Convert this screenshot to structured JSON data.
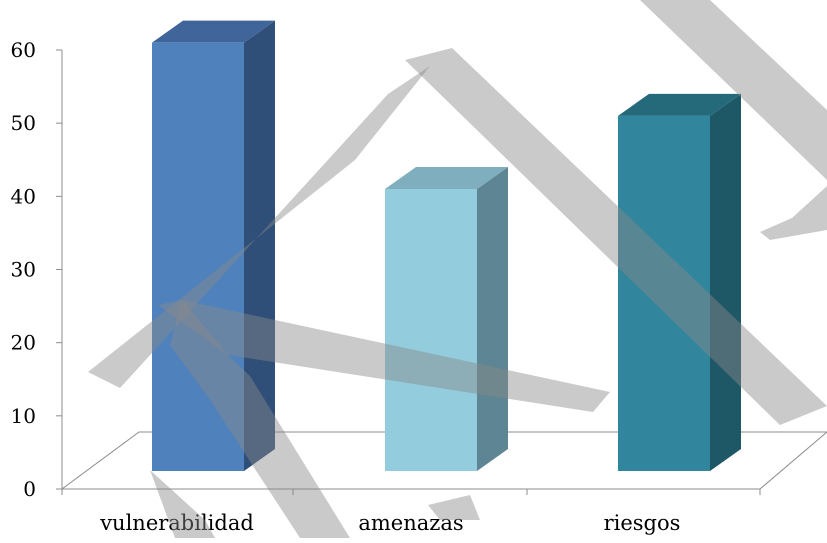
{
  "chart_data": {
    "type": "bar",
    "title": "",
    "xlabel": "",
    "ylabel": "",
    "categories": [
      "vulnerabilidad",
      "amenazas",
      "riesgos"
    ],
    "series": [
      {
        "values": [
          61,
          41,
          51
        ]
      }
    ],
    "ylim": [
      0,
      60
    ],
    "yticks": [
      "0",
      "10",
      "20",
      "30",
      "40",
      "50",
      "60"
    ],
    "grid": false,
    "legend": "none",
    "style": "3d-column",
    "bar_colors": [
      "#4F81BD",
      "#93CDDD",
      "#31859C"
    ],
    "bar_side_colors": [
      "#2F4F78",
      "#5D8593",
      "#1E5766"
    ],
    "bar_top_colors": [
      "#3F659A",
      "#7FAFBF",
      "#256A7A"
    ]
  }
}
